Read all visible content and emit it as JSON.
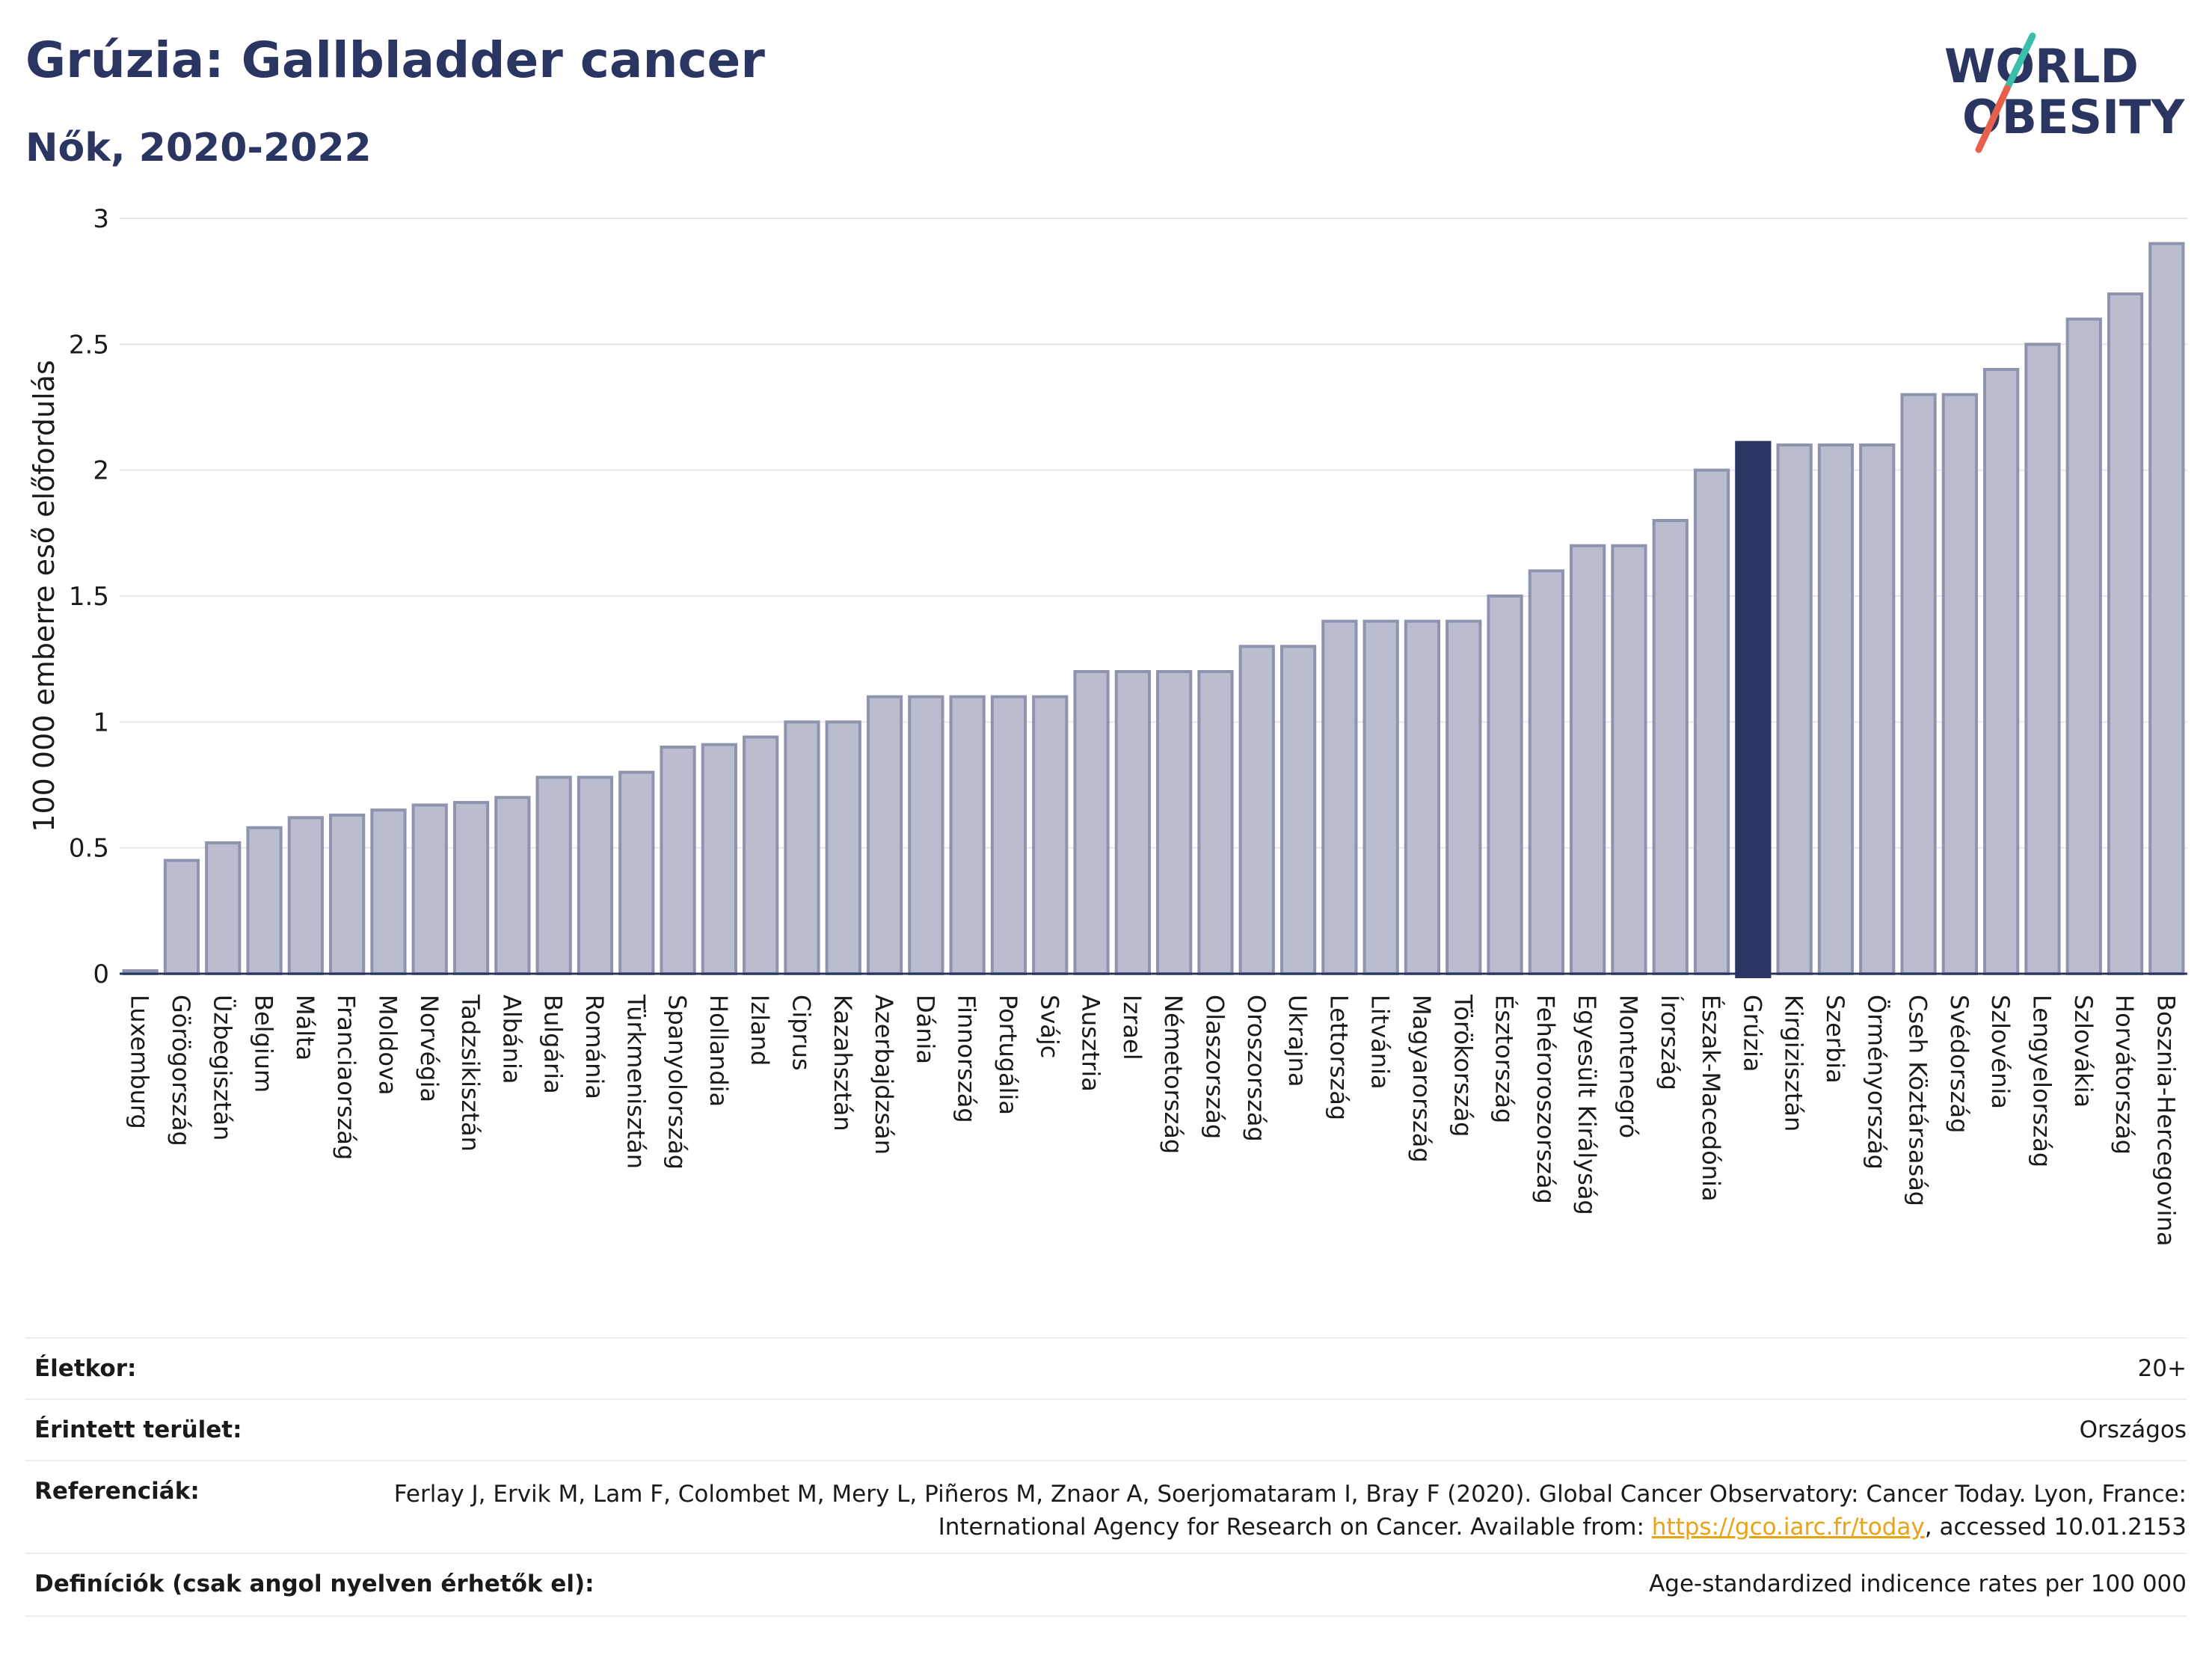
{
  "header": {
    "title": "Grúzia: Gallbladder cancer",
    "subtitle": "Nők, 2020-2022",
    "logo_line1": "WORLD",
    "logo_line2": "OBESITY"
  },
  "colors": {
    "bar": "#b9bdcf",
    "bar_stroke": "#8e94ae",
    "highlight": "#2b3561",
    "title": "#2b3561",
    "grid": "#e6e6ec",
    "logo_slash_teal": "#3bbfad",
    "logo_slash_red": "#e8604c"
  },
  "chart_data": {
    "type": "bar",
    "title": "Grúzia: Gallbladder cancer",
    "subtitle": "Nők, 2020-2022",
    "ylabel": "100 000 emberre eső előfordulás",
    "ylim": [
      0,
      3
    ],
    "yticks": [
      0,
      0.5,
      1,
      1.5,
      2,
      2.5,
      3
    ],
    "ytick_labels": [
      "0",
      "0.5",
      "1",
      "1.5",
      "2",
      "2.5",
      "3"
    ],
    "grid": true,
    "highlight": "Grúzia",
    "categories": [
      "Luxemburg",
      "Görögország",
      "Üzbegisztán",
      "Belgium",
      "Málta",
      "Franciaország",
      "Moldova",
      "Norvégia",
      "Tadzsikisztán",
      "Albánia",
      "Bulgária",
      "Románia",
      "Türkmenisztán",
      "Spanyolország",
      "Hollandia",
      "Izland",
      "Ciprus",
      "Kazahsztán",
      "Azerbajdzsán",
      "Dánia",
      "Finnország",
      "Portugália",
      "Svájc",
      "Ausztria",
      "Izrael",
      "Németország",
      "Olaszország",
      "Oroszország",
      "Ukrajna",
      "Lettország",
      "Litvánia",
      "Magyarország",
      "Törökország",
      "Észtország",
      "Fehéroroszország",
      "Egyesült Királyság",
      "Montenegró",
      "Írország",
      "Észak-Macedónia",
      "Grúzia",
      "Kirgizisztán",
      "Szerbia",
      "Örményország",
      "Cseh Köztársaság",
      "Svédország",
      "Szlovénia",
      "Lengyelország",
      "Szlovákia",
      "Horvátország",
      "Bosznia-Hercegovina"
    ],
    "values": [
      0.0,
      0.45,
      0.52,
      0.58,
      0.62,
      0.63,
      0.65,
      0.67,
      0.68,
      0.7,
      0.78,
      0.78,
      0.8,
      0.9,
      0.91,
      0.94,
      1.0,
      1.0,
      1.1,
      1.1,
      1.1,
      1.1,
      1.1,
      1.2,
      1.2,
      1.2,
      1.2,
      1.3,
      1.3,
      1.4,
      1.4,
      1.4,
      1.4,
      1.5,
      1.6,
      1.7,
      1.7,
      1.8,
      2.0,
      2.11,
      2.1,
      2.1,
      2.1,
      2.3,
      2.3,
      2.4,
      2.5,
      2.6,
      2.7,
      2.9
    ]
  },
  "meta": {
    "age_label": "Életkor:",
    "age_value": "20+",
    "area_label": "Érintett terület:",
    "area_value": "Országos",
    "ref_label": "Referenciák:",
    "ref_text1": "Ferlay J, Ervik M, Lam F, Colombet M, Mery L, Piñeros M, Znaor A, Soerjomataram I, Bray F (2020). Global Cancer Observatory: Cancer Today. Lyon, France: International Agency for Research on Cancer. Available from: ",
    "ref_link": "https://gco.iarc.fr/today",
    "ref_text2": ", accessed 10.01.2153",
    "def_label": "Definíciók (csak angol nyelven érhetők el):",
    "def_value": "Age-standardized indicence rates per 100 000"
  }
}
